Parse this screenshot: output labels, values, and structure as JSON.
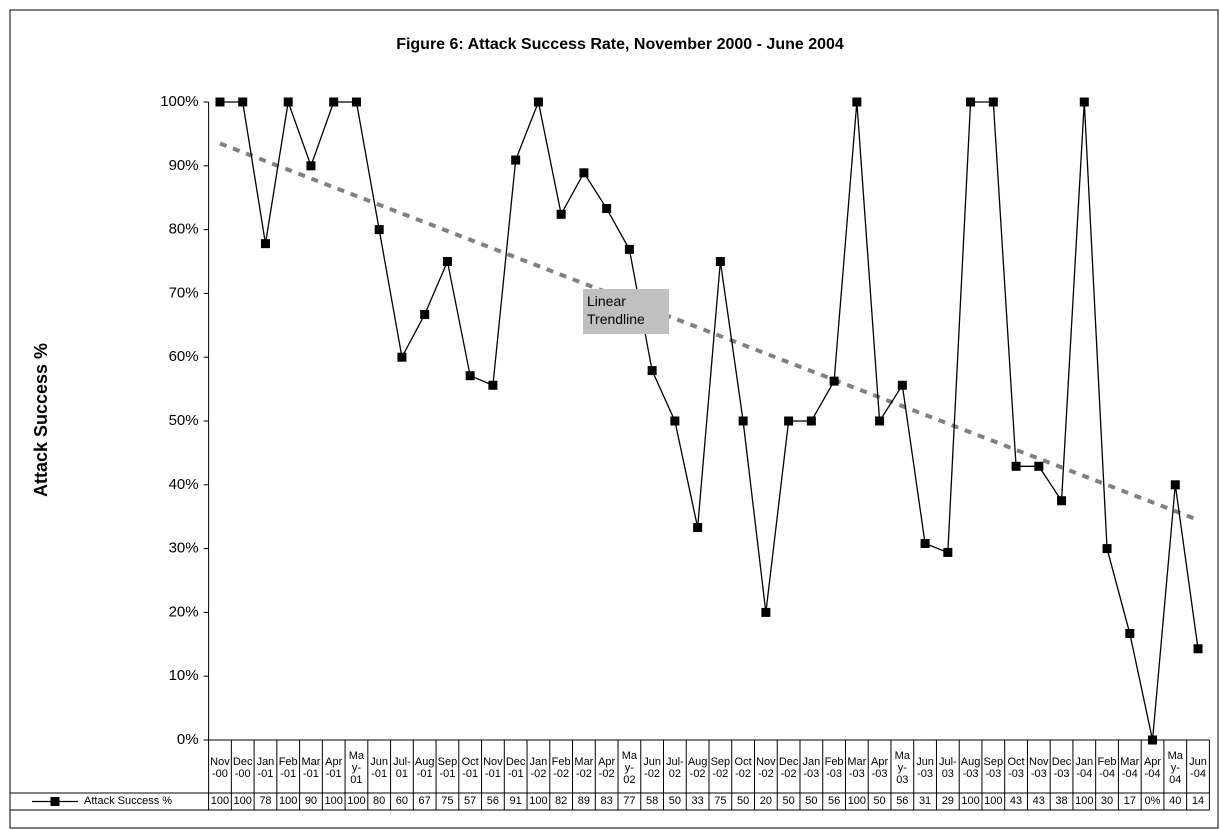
{
  "chart_data": {
    "type": "line",
    "title": "Figure 6: Attack Success Rate, November 2000 - June 2004",
    "y_label": "Attack Success %",
    "categories": [
      "Nov-00",
      "Dec-00",
      "Jan-01",
      "Feb-01",
      "Mar-01",
      "Apr-01",
      "May-01",
      "Jun-01",
      "Jul-01",
      "Aug-01",
      "Sep-01",
      "Oct-01",
      "Nov-01",
      "Dec-01",
      "Jan-02",
      "Feb-02",
      "Mar-02",
      "Apr-02",
      "May-02",
      "Jun-02",
      "Jul-02",
      "Aug-02",
      "Sep-02",
      "Oct-02",
      "Nov-02",
      "Dec-02",
      "Jan-03",
      "Feb-03",
      "Mar-03",
      "Apr-03",
      "May-03",
      "Jun-03",
      "Jul-03",
      "Aug-03",
      "Sep-03",
      "Oct-03",
      "Nov-03",
      "Dec-03",
      "Jan-04",
      "Feb-04",
      "Mar-04",
      "Apr-04",
      "May-04",
      "Jun-04"
    ],
    "series": [
      {
        "name": "Attack Success %",
        "color": "#000000",
        "values": [
          100,
          100,
          77.8,
          100,
          90,
          100,
          100,
          80,
          60,
          66.7,
          75,
          57.1,
          55.6,
          90.9,
          100,
          82.4,
          88.9,
          83.3,
          76.9,
          57.9,
          50,
          33.3,
          75,
          50,
          20,
          50,
          50,
          56.25,
          100,
          50,
          55.6,
          30.8,
          29.4,
          100,
          100,
          42.9,
          42.9,
          37.5,
          100,
          30,
          16.7,
          0,
          40,
          14.3
        ],
        "value_labels": [
          "100",
          "100",
          "78",
          "100",
          "90",
          "100",
          "100",
          "80",
          "60",
          "67",
          "75",
          "57",
          "56",
          "91",
          "100",
          "82",
          "89",
          "83",
          "77",
          "58",
          "50",
          "33",
          "75",
          "50",
          "20",
          "50",
          "50",
          "56",
          "100",
          "50",
          "56",
          "31",
          "29",
          "100",
          "100",
          "43",
          "43",
          "38",
          "100",
          "30",
          "17",
          "0%",
          "40",
          "14"
        ]
      }
    ],
    "trendline": {
      "label": "Linear Trendline",
      "color": "#808080",
      "start": 93.5,
      "end": 34.5
    },
    "ylim": [
      0,
      100
    ],
    "yticks": [
      {
        "value": 0,
        "label": "0%"
      },
      {
        "value": 10,
        "label": "10%"
      },
      {
        "value": 20,
        "label": "20%"
      },
      {
        "value": 30,
        "label": "30%"
      },
      {
        "value": 40,
        "label": "40%"
      },
      {
        "value": 50,
        "label": "50%"
      },
      {
        "value": 60,
        "label": "60%"
      },
      {
        "value": 70,
        "label": "70%"
      },
      {
        "value": 80,
        "label": "80%"
      },
      {
        "value": 90,
        "label": "90%"
      },
      {
        "value": 100,
        "label": "100%"
      }
    ],
    "grid": false,
    "data_table": true
  }
}
